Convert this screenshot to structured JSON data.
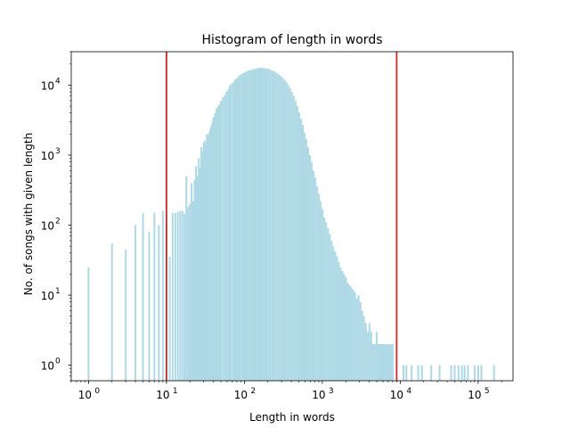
{
  "chart_data": {
    "type": "bar",
    "title": "Histogram of length in words",
    "xlabel": "Length in words",
    "ylabel": "No. of songs with given length",
    "x_scale": "log",
    "y_scale": "log",
    "xlim": [
      0.6,
      280000
    ],
    "ylim": [
      0.6,
      30000
    ],
    "x_ticks": [
      {
        "base": "10",
        "exp": "0",
        "value": 1
      },
      {
        "base": "10",
        "exp": "1",
        "value": 10
      },
      {
        "base": "10",
        "exp": "2",
        "value": 100
      },
      {
        "base": "10",
        "exp": "3",
        "value": 1000
      },
      {
        "base": "10",
        "exp": "4",
        "value": 10000
      },
      {
        "base": "10",
        "exp": "5",
        "value": 100000
      }
    ],
    "y_ticks": [
      {
        "base": "10",
        "exp": "0",
        "value": 1
      },
      {
        "base": "10",
        "exp": "1",
        "value": 10
      },
      {
        "base": "10",
        "exp": "2",
        "value": 100
      },
      {
        "base": "10",
        "exp": "3",
        "value": 1000
      },
      {
        "base": "10",
        "exp": "4",
        "value": 10000
      }
    ],
    "bar_color": "#add8e6",
    "reference_lines": [
      {
        "axis": "x",
        "value": 10,
        "color": "#d62728"
      },
      {
        "axis": "x",
        "value": 9000,
        "color": "#d62728"
      }
    ],
    "grid": false,
    "legend": "none",
    "bins": [
      [
        1,
        25
      ],
      [
        2,
        55
      ],
      [
        3,
        45
      ],
      [
        4,
        100
      ],
      [
        5,
        150
      ],
      [
        6,
        80
      ],
      [
        7,
        150
      ],
      [
        8,
        100
      ],
      [
        9,
        160
      ],
      [
        10,
        100
      ],
      [
        11,
        35
      ],
      [
        12,
        150
      ],
      [
        13,
        150
      ],
      [
        14,
        155
      ],
      [
        15,
        160
      ],
      [
        16,
        160
      ],
      [
        17,
        145
      ],
      [
        18,
        500
      ],
      [
        19,
        180
      ],
      [
        20,
        200
      ],
      [
        21,
        400
      ],
      [
        22,
        220
      ],
      [
        23,
        450
      ],
      [
        24,
        700
      ],
      [
        25,
        500
      ],
      [
        26,
        900
      ],
      [
        27,
        650
      ],
      [
        28,
        1300
      ],
      [
        29,
        1100
      ],
      [
        30,
        1500
      ],
      [
        31,
        1600
      ],
      [
        32,
        1400
      ],
      [
        33,
        2000
      ],
      [
        34,
        1800
      ],
      [
        35,
        2000
      ],
      [
        36,
        2200
      ],
      [
        37,
        2500
      ],
      [
        38,
        2700
      ],
      [
        39,
        3000
      ],
      [
        40,
        3500
      ],
      [
        42,
        4000
      ],
      [
        44,
        4700
      ],
      [
        46,
        5000
      ],
      [
        48,
        5300
      ],
      [
        50,
        6000
      ],
      [
        53,
        6700
      ],
      [
        56,
        7200
      ],
      [
        59,
        8100
      ],
      [
        62,
        8700
      ],
      [
        65,
        9800
      ],
      [
        68,
        10500
      ],
      [
        72,
        11000
      ],
      [
        76,
        12000
      ],
      [
        80,
        12500
      ],
      [
        84,
        13200
      ],
      [
        88,
        14000
      ],
      [
        93,
        14500
      ],
      [
        98,
        15000
      ],
      [
        103,
        15400
      ],
      [
        108,
        15800
      ],
      [
        114,
        16200
      ],
      [
        120,
        16500
      ],
      [
        127,
        16800
      ],
      [
        134,
        17000
      ],
      [
        141,
        17200
      ],
      [
        149,
        17500
      ],
      [
        157,
        17600
      ],
      [
        165,
        17800
      ],
      [
        174,
        17600
      ],
      [
        184,
        17400
      ],
      [
        194,
        17200
      ],
      [
        205,
        17000
      ],
      [
        216,
        16600
      ],
      [
        228,
        16200
      ],
      [
        240,
        15800
      ],
      [
        253,
        15200
      ],
      [
        267,
        14600
      ],
      [
        282,
        14000
      ],
      [
        297,
        13400
      ],
      [
        313,
        12600
      ],
      [
        330,
        11800
      ],
      [
        348,
        11000
      ],
      [
        367,
        10000
      ],
      [
        387,
        9000
      ],
      [
        408,
        8000
      ],
      [
        430,
        7000
      ],
      [
        454,
        6000
      ],
      [
        479,
        5000
      ],
      [
        505,
        4100
      ],
      [
        533,
        3300
      ],
      [
        562,
        2700
      ],
      [
        593,
        2100
      ],
      [
        625,
        1700
      ],
      [
        659,
        1300
      ],
      [
        695,
        1000
      ],
      [
        733,
        800
      ],
      [
        773,
        600
      ],
      [
        815,
        480
      ],
      [
        860,
        360
      ],
      [
        907,
        280
      ],
      [
        956,
        220
      ],
      [
        1008,
        170
      ],
      [
        1063,
        130
      ],
      [
        1121,
        110
      ],
      [
        1183,
        90
      ],
      [
        1248,
        75
      ],
      [
        1316,
        60
      ],
      [
        1388,
        50
      ],
      [
        1464,
        42
      ],
      [
        1544,
        36
      ],
      [
        1628,
        30
      ],
      [
        1717,
        25
      ],
      [
        1811,
        22
      ],
      [
        1910,
        20
      ],
      [
        2015,
        18
      ],
      [
        2125,
        15
      ],
      [
        2241,
        14
      ],
      [
        2364,
        13
      ],
      [
        2493,
        12
      ],
      [
        2630,
        11
      ],
      [
        2774,
        9
      ],
      [
        2926,
        10
      ],
      [
        3086,
        8
      ],
      [
        3255,
        6
      ],
      [
        3433,
        5
      ],
      [
        3621,
        4
      ],
      [
        3819,
        3
      ],
      [
        4028,
        4
      ],
      [
        4248,
        3
      ],
      [
        4481,
        2
      ],
      [
        4726,
        2
      ],
      [
        4985,
        3
      ],
      [
        5258,
        2
      ],
      [
        5546,
        2
      ],
      [
        5849,
        2
      ],
      [
        6169,
        2
      ],
      [
        6506,
        2
      ],
      [
        6862,
        2
      ],
      [
        7237,
        2
      ],
      [
        7633,
        2
      ],
      [
        8050,
        2
      ],
      [
        11000,
        1
      ],
      [
        12000,
        1
      ],
      [
        14000,
        1
      ],
      [
        17000,
        1
      ],
      [
        19000,
        1
      ],
      [
        25000,
        1
      ],
      [
        32000,
        1
      ],
      [
        45000,
        1
      ],
      [
        50000,
        1
      ],
      [
        56000,
        1
      ],
      [
        62000,
        1
      ],
      [
        67000,
        1
      ],
      [
        74000,
        1
      ],
      [
        90000,
        1
      ],
      [
        100000,
        1
      ],
      [
        110000,
        1
      ],
      [
        160000,
        1
      ]
    ]
  }
}
